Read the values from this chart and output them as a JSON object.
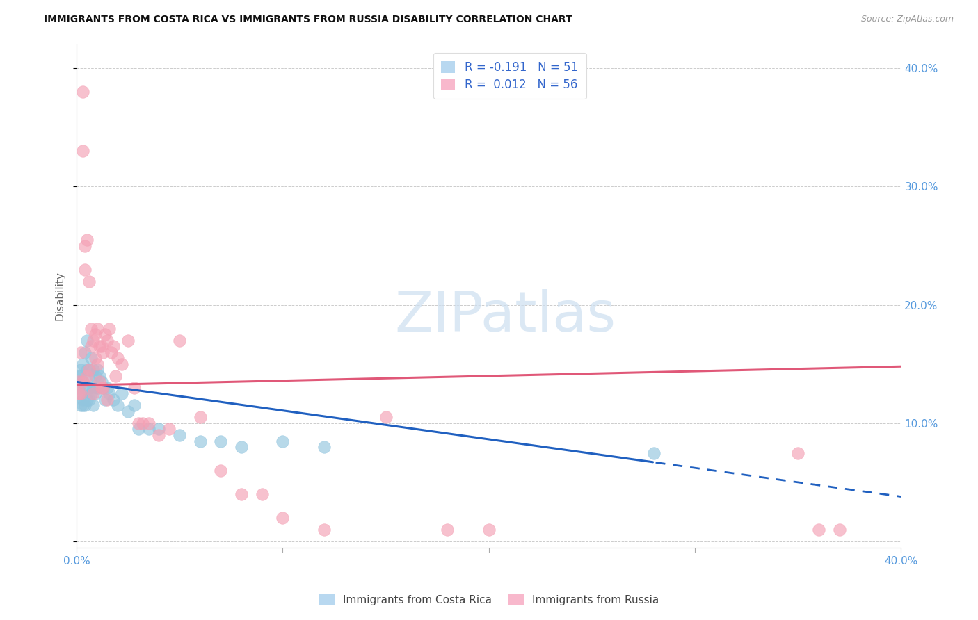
{
  "title": "IMMIGRANTS FROM COSTA RICA VS IMMIGRANTS FROM RUSSIA DISABILITY CORRELATION CHART",
  "source": "Source: ZipAtlas.com",
  "ylabel": "Disability",
  "xlim": [
    0.0,
    0.4
  ],
  "ylim": [
    -0.005,
    0.42
  ],
  "blue_color": "#92c5de",
  "pink_color": "#f4a0b4",
  "trend_blue_color": "#2060c0",
  "trend_pink_color": "#e05878",
  "legend_text_color": "#3366cc",
  "axis_tick_color": "#5599dd",
  "grid_color": "#cccccc",
  "watermark_color": "#cddff0",
  "legend1_label": "R = -0.191   N = 51",
  "legend2_label": "R =  0.012   N = 56",
  "blue_label": "Immigrants from Costa Rica",
  "pink_label": "Immigrants from Russia",
  "blue_x": [
    0.001,
    0.001,
    0.001,
    0.002,
    0.002,
    0.002,
    0.002,
    0.003,
    0.003,
    0.003,
    0.003,
    0.004,
    0.004,
    0.004,
    0.005,
    0.005,
    0.005,
    0.006,
    0.006,
    0.006,
    0.007,
    0.007,
    0.007,
    0.008,
    0.008,
    0.008,
    0.009,
    0.009,
    0.01,
    0.01,
    0.011,
    0.012,
    0.013,
    0.014,
    0.015,
    0.016,
    0.018,
    0.02,
    0.022,
    0.025,
    0.028,
    0.03,
    0.035,
    0.04,
    0.05,
    0.06,
    0.07,
    0.08,
    0.1,
    0.12,
    0.28
  ],
  "blue_y": [
    0.13,
    0.14,
    0.135,
    0.145,
    0.14,
    0.125,
    0.115,
    0.15,
    0.135,
    0.12,
    0.115,
    0.16,
    0.13,
    0.115,
    0.17,
    0.145,
    0.12,
    0.145,
    0.13,
    0.12,
    0.155,
    0.135,
    0.125,
    0.145,
    0.13,
    0.115,
    0.14,
    0.125,
    0.145,
    0.13,
    0.14,
    0.135,
    0.13,
    0.12,
    0.13,
    0.125,
    0.12,
    0.115,
    0.125,
    0.11,
    0.115,
    0.095,
    0.095,
    0.095,
    0.09,
    0.085,
    0.085,
    0.08,
    0.085,
    0.08,
    0.075
  ],
  "pink_x": [
    0.001,
    0.001,
    0.002,
    0.002,
    0.003,
    0.003,
    0.003,
    0.004,
    0.004,
    0.005,
    0.005,
    0.006,
    0.006,
    0.007,
    0.007,
    0.008,
    0.008,
    0.009,
    0.009,
    0.01,
    0.01,
    0.011,
    0.011,
    0.012,
    0.012,
    0.013,
    0.013,
    0.014,
    0.015,
    0.015,
    0.016,
    0.017,
    0.018,
    0.019,
    0.02,
    0.022,
    0.025,
    0.028,
    0.03,
    0.032,
    0.035,
    0.04,
    0.045,
    0.05,
    0.06,
    0.07,
    0.08,
    0.09,
    0.1,
    0.12,
    0.15,
    0.18,
    0.2,
    0.35,
    0.36,
    0.37
  ],
  "pink_y": [
    0.135,
    0.125,
    0.16,
    0.125,
    0.38,
    0.33,
    0.135,
    0.25,
    0.23,
    0.255,
    0.14,
    0.22,
    0.145,
    0.18,
    0.165,
    0.17,
    0.125,
    0.175,
    0.155,
    0.18,
    0.15,
    0.165,
    0.135,
    0.165,
    0.13,
    0.16,
    0.13,
    0.175,
    0.17,
    0.12,
    0.18,
    0.16,
    0.165,
    0.14,
    0.155,
    0.15,
    0.17,
    0.13,
    0.1,
    0.1,
    0.1,
    0.09,
    0.095,
    0.17,
    0.105,
    0.06,
    0.04,
    0.04,
    0.02,
    0.01,
    0.105,
    0.01,
    0.01,
    0.075,
    0.01,
    0.01
  ],
  "trend_blue_x0": 0.0,
  "trend_blue_y0": 0.135,
  "trend_blue_x1": 0.4,
  "trend_blue_y1": 0.038,
  "trend_blue_solid_end": 0.28,
  "trend_pink_x0": 0.0,
  "trend_pink_y0": 0.132,
  "trend_pink_x1": 0.4,
  "trend_pink_y1": 0.148
}
